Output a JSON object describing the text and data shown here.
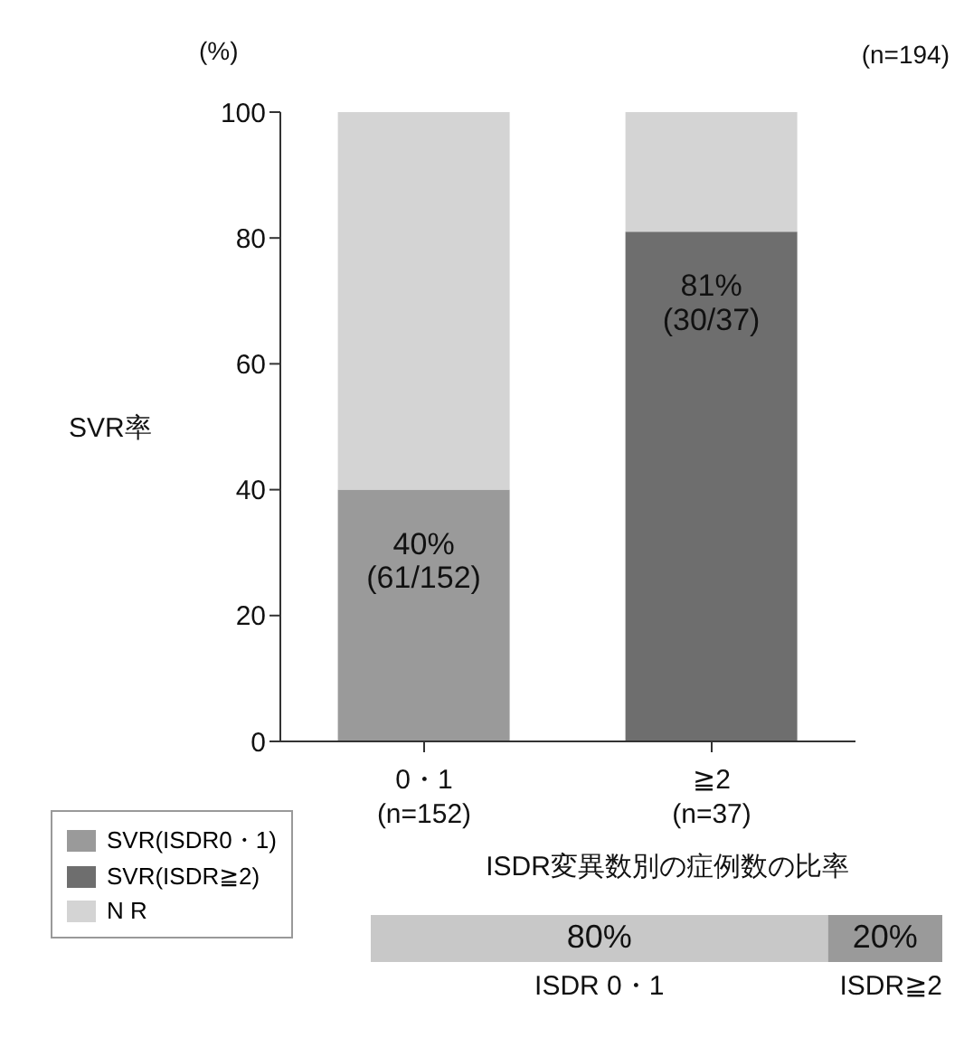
{
  "chart_data": [
    {
      "type": "bar",
      "stacked": true,
      "ylabel": "SVR率",
      "categories": [
        "0・1\n(n=152)",
        "≧2\n(n=37)"
      ],
      "series": [
        {
          "name": "SVR(ISDR0・1)",
          "color": "#9a9a9a",
          "values": [
            40,
            null
          ],
          "value_labels": [
            "40%\n(61/152)",
            null
          ]
        },
        {
          "name": "SVR(ISDR≧2)",
          "color": "#6e6e6e",
          "values": [
            null,
            81
          ],
          "value_labels": [
            null,
            "81%\n(30/37)"
          ]
        },
        {
          "name": "N R",
          "color": "#d4d4d4",
          "values": [
            60,
            19
          ]
        }
      ],
      "ylim": [
        0,
        100
      ],
      "yticks": [
        0,
        20,
        40,
        60,
        80,
        100
      ],
      "grid": false,
      "legend": "bottom left",
      "annotations": [
        "(%)",
        "(n=194)"
      ]
    },
    {
      "type": "bar",
      "stacked": true,
      "orientation": "horizontal",
      "title": "ISDR変異数別の症例数の比率",
      "categories": [
        null
      ],
      "series": [
        {
          "name": "ISDR 0・1",
          "color": "#c8c8c8",
          "values": [
            80
          ],
          "value_labels": [
            "80%"
          ]
        },
        {
          "name": "ISDR≧2",
          "color": "#9a9a9a",
          "values": [
            20
          ],
          "value_labels": [
            "20%"
          ]
        }
      ],
      "xlim": [
        0,
        100
      ],
      "legend": false
    }
  ]
}
